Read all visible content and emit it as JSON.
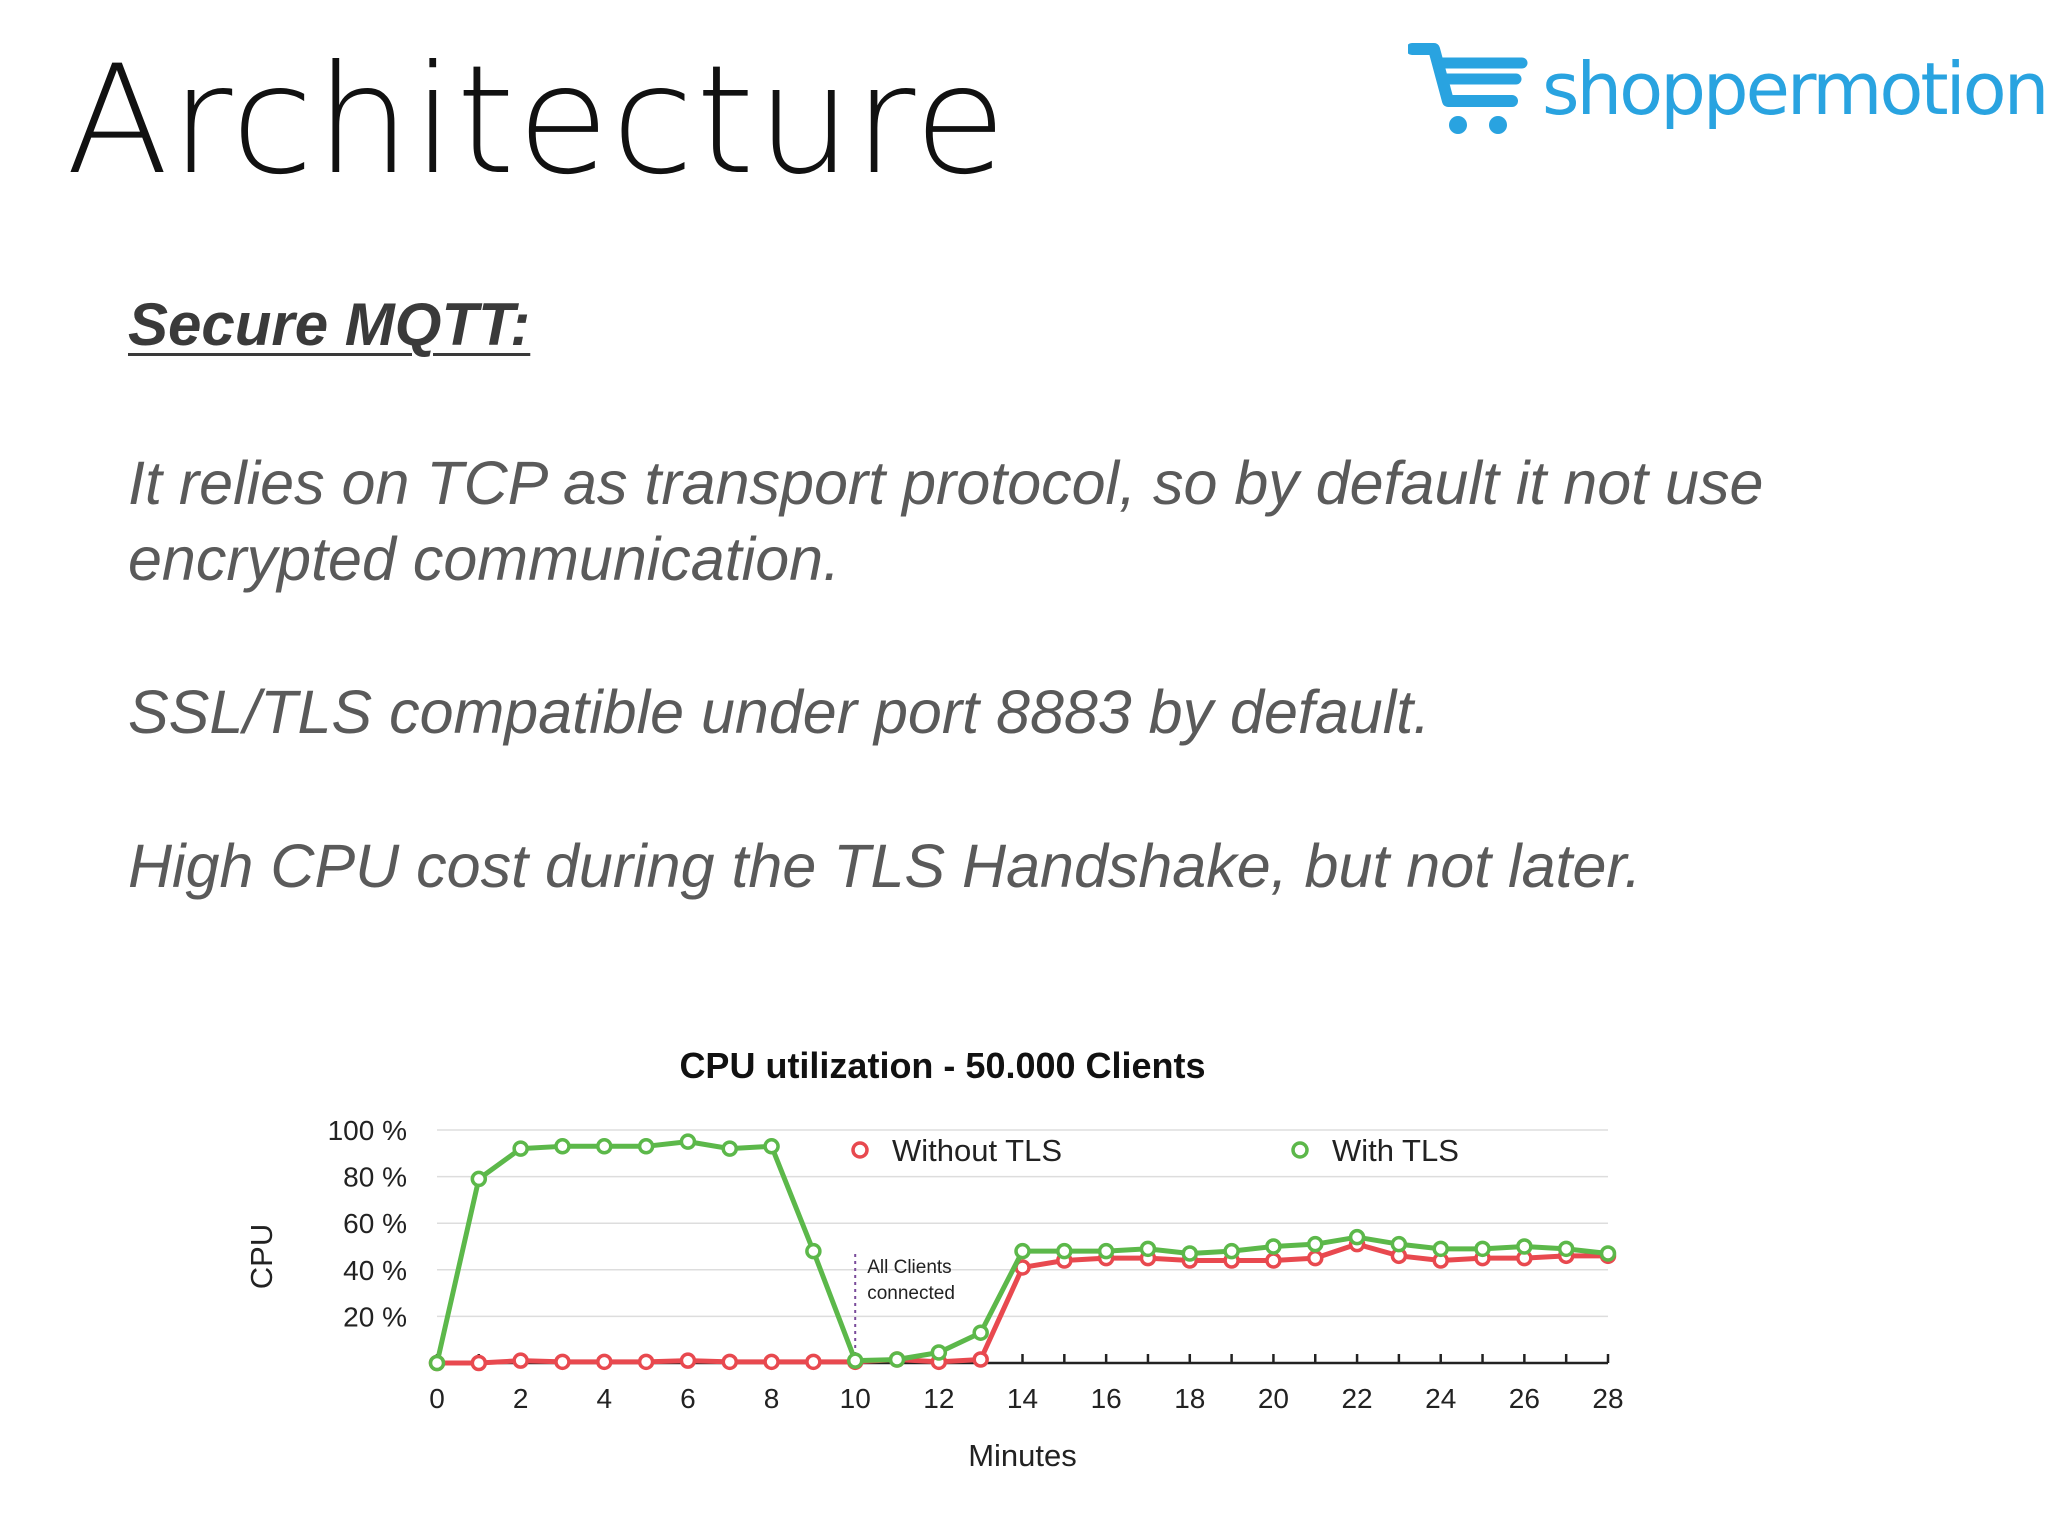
{
  "slide": {
    "title": "Architecture",
    "subtitle": "Secure MQTT:",
    "paragraphs": [
      "It relies on TCP as transport protocol, so by default it not use encrypted communication.",
      "SSL/TLS compatible under port 8883 by default.",
      "High CPU cost during the TLS Handshake, but not later."
    ]
  },
  "logo": {
    "text": "shoppermotion",
    "icon": "shopping-cart-icon",
    "color": "#29a3e0"
  },
  "chart_data": {
    "type": "line",
    "title": "CPU utilization - 50.000 Clients",
    "xlabel": "Minutes",
    "ylabel": "CPU",
    "x": [
      0,
      1,
      2,
      3,
      4,
      5,
      6,
      7,
      8,
      9,
      10,
      11,
      12,
      13,
      14,
      15,
      16,
      17,
      18,
      19,
      20,
      21,
      22,
      23,
      24,
      25,
      26,
      27,
      28
    ],
    "xlim": [
      0,
      28
    ],
    "ylim": [
      0,
      100
    ],
    "x_ticks": [
      "0",
      "2",
      "4",
      "6",
      "8",
      "10",
      "12",
      "14",
      "16",
      "18",
      "20",
      "22",
      "24",
      "26",
      "28"
    ],
    "y_ticks": [
      {
        "value": 20,
        "label": "20 %"
      },
      {
        "value": 40,
        "label": "40 %"
      },
      {
        "value": 60,
        "label": "60 %"
      },
      {
        "value": 80,
        "label": "80 %"
      },
      {
        "value": 100,
        "label": "100 %"
      }
    ],
    "grid": true,
    "legend_position": "top",
    "series": [
      {
        "name": "Without TLS",
        "color": "#e8494f",
        "values": [
          0,
          0,
          1,
          0.5,
          0.5,
          0.5,
          1,
          0.5,
          0.5,
          0.5,
          0.5,
          1.5,
          0.5,
          1.5,
          41,
          44,
          45,
          45,
          44,
          44,
          44,
          45,
          51,
          46,
          44,
          45,
          45,
          46,
          46
        ]
      },
      {
        "name": "With TLS",
        "color": "#5cb84a",
        "values": [
          0,
          79,
          92,
          93,
          93,
          93,
          95,
          92,
          93,
          48,
          1,
          1.5,
          4.5,
          13,
          48,
          48,
          48,
          49,
          47,
          48,
          50,
          51,
          54,
          51,
          49,
          49,
          50,
          49,
          47
        ]
      }
    ],
    "annotations": [
      {
        "x": 10,
        "text_lines": [
          "All Clients",
          "connected"
        ]
      }
    ]
  }
}
